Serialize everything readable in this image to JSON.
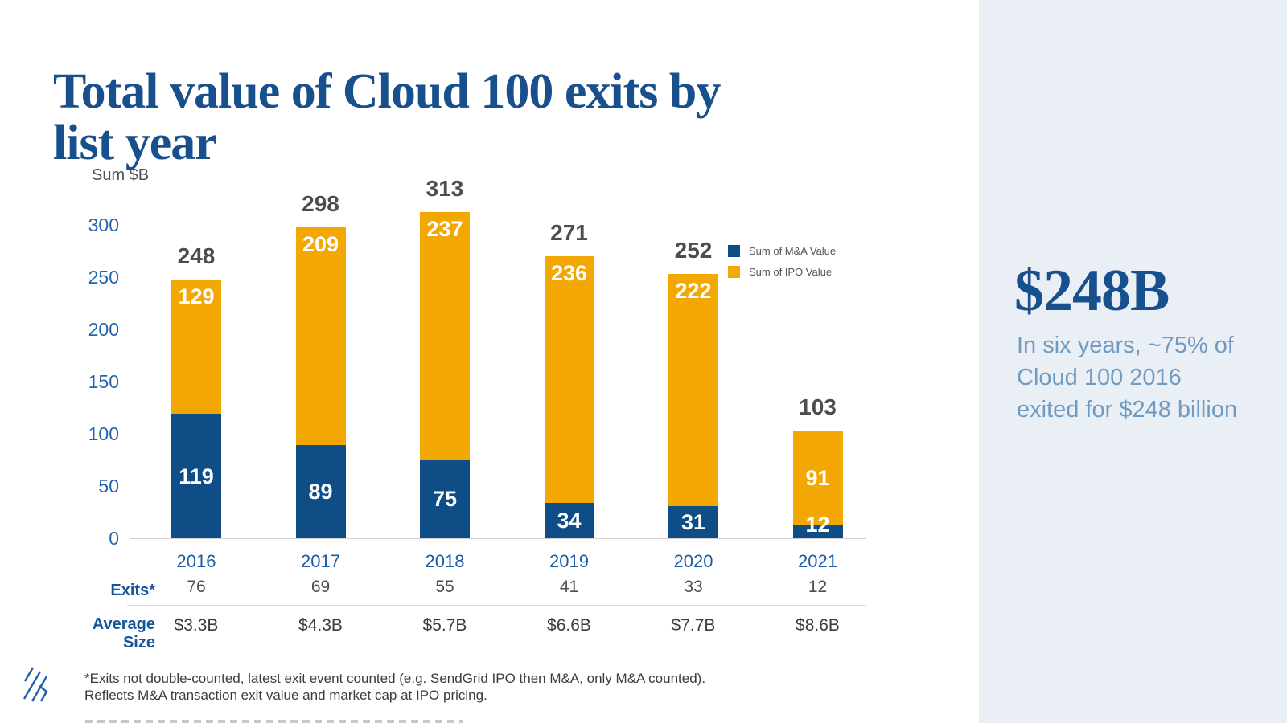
{
  "slide": {
    "title_lines": [
      "Total value of Cloud 100 exits by",
      "list year"
    ]
  },
  "chart_data": {
    "type": "bar",
    "stacked": true,
    "title": "Total value of Cloud 100 exits by list year",
    "axis_title": "Sum $B",
    "categories": [
      "2016",
      "2017",
      "2018",
      "2019",
      "2020",
      "2021"
    ],
    "series": [
      {
        "name": "Sum of M&A Value",
        "color": "#0E4D85",
        "values": [
          119,
          89,
          75,
          34,
          31,
          12
        ]
      },
      {
        "name": "Sum of IPO Value",
        "color": "#F2A702",
        "values": [
          129,
          209,
          237,
          236,
          222,
          91
        ]
      }
    ],
    "totals": [
      248,
      298,
      313,
      271,
      252,
      103
    ],
    "yticks": [
      0,
      50,
      100,
      150,
      200,
      250,
      300
    ],
    "ylim": [
      0,
      330
    ],
    "grid": false,
    "legend_position": "inside-right"
  },
  "table": {
    "rows": [
      {
        "label": "Exits*",
        "values": [
          "76",
          "69",
          "55",
          "41",
          "33",
          "12"
        ]
      },
      {
        "label": "Average Size",
        "values": [
          "$3.3B",
          "$4.3B",
          "$5.7B",
          "$6.6B",
          "$7.7B",
          "$8.6B"
        ]
      }
    ]
  },
  "footnote": {
    "lines": [
      "*Exits not double-counted, latest exit event counted (e.g. SendGrid IPO then M&A, only M&A counted).",
      "Reflects M&A transaction exit value and market cap at IPO pricing."
    ],
    "third_line_cropped": true
  },
  "aside": {
    "headline": "$248B",
    "body": "In six years, ~75% of Cloud 100 2016 exited for $248 billion"
  },
  "colors": {
    "title_blue": "#17508D",
    "axis_blue": "#2765AB",
    "year_blue": "#1C5CA6",
    "row_label_blue": "#15569A",
    "ma_blue": "#0E4D85",
    "ipo_orange": "#F2A702",
    "total_gray": "#4D4D4D",
    "aside_bg": "#EAEEF5",
    "aside_body_blue": "#6F9BC2",
    "logo_blue": "#1E5FA6"
  }
}
